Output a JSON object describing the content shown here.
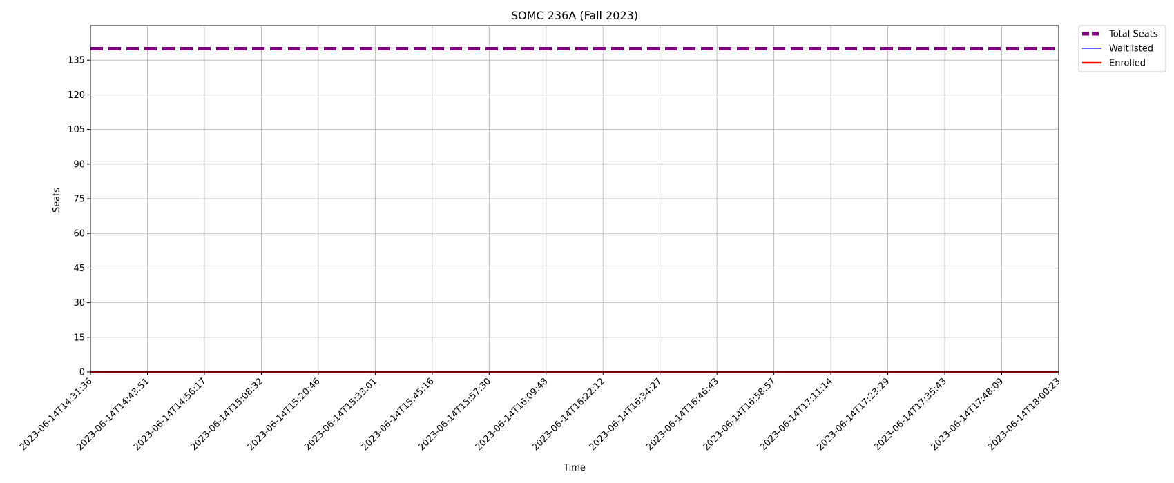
{
  "chart_data": {
    "type": "line",
    "title": "SOMC 236A (Fall 2023)",
    "xlabel": "Time",
    "ylabel": "Seats",
    "ylim": [
      0,
      150
    ],
    "yticks": [
      0,
      15,
      30,
      45,
      60,
      75,
      90,
      105,
      120,
      135
    ],
    "grid": true,
    "legend_position": "outside-top-right",
    "x": [
      "2023-06-14T14:31:36",
      "2023-06-14T14:43:51",
      "2023-06-14T14:56:17",
      "2023-06-14T15:08:32",
      "2023-06-14T15:20:46",
      "2023-06-14T15:33:01",
      "2023-06-14T15:45:16",
      "2023-06-14T15:57:30",
      "2023-06-14T16:09:48",
      "2023-06-14T16:22:12",
      "2023-06-14T16:34:27",
      "2023-06-14T16:46:43",
      "2023-06-14T16:58:57",
      "2023-06-14T17:11:14",
      "2023-06-14T17:23:29",
      "2023-06-14T17:35:43",
      "2023-06-14T17:48:09",
      "2023-06-14T18:00:23"
    ],
    "series": [
      {
        "name": "Total Seats",
        "color": "#800080",
        "style": "dashed",
        "values": [
          140,
          140,
          140,
          140,
          140,
          140,
          140,
          140,
          140,
          140,
          140,
          140,
          140,
          140,
          140,
          140,
          140,
          140
        ]
      },
      {
        "name": "Waitlisted",
        "color": "#0000ff",
        "style": "solid",
        "values": [
          0,
          0,
          0,
          0,
          0,
          0,
          0,
          0,
          0,
          0,
          0,
          0,
          0,
          0,
          0,
          0,
          0,
          0
        ]
      },
      {
        "name": "Enrolled",
        "color": "#ff0000",
        "style": "solid",
        "values": [
          0,
          0,
          0,
          0,
          0,
          0,
          0,
          0,
          0,
          0,
          0,
          0,
          0,
          0,
          0,
          0,
          0,
          0
        ]
      }
    ]
  }
}
